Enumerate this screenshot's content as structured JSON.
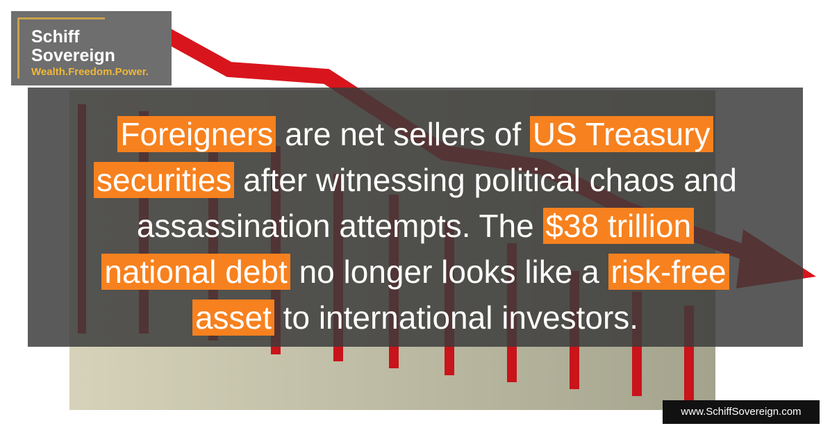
{
  "logo": {
    "lines": [
      "Schiff",
      "Sovereign"
    ],
    "tagline": "Wealth.Freedom.Power."
  },
  "quote": {
    "lines": [
      [
        {
          "text": "Foreigners",
          "highlight": true
        },
        {
          "text": " are net sellers of ",
          "highlight": false
        },
        {
          "text": "US Treasury",
          "highlight": true
        }
      ],
      [
        {
          "text": "securities",
          "highlight": true
        },
        {
          "text": " after witnessing political chaos and",
          "highlight": false
        }
      ],
      [
        {
          "text": "assassination attempts. The ",
          "highlight": false
        },
        {
          "text": "$38 trillion",
          "highlight": true
        }
      ],
      [
        {
          "text": "national debt",
          "highlight": true
        },
        {
          "text": " no longer looks like a ",
          "highlight": false
        },
        {
          "text": "risk-free",
          "highlight": true
        }
      ],
      [
        {
          "text": "asset",
          "highlight": true
        },
        {
          "text": " to international investors.",
          "highlight": false
        }
      ]
    ]
  },
  "footer": {
    "url": "www.SchiffSovereign.com"
  }
}
